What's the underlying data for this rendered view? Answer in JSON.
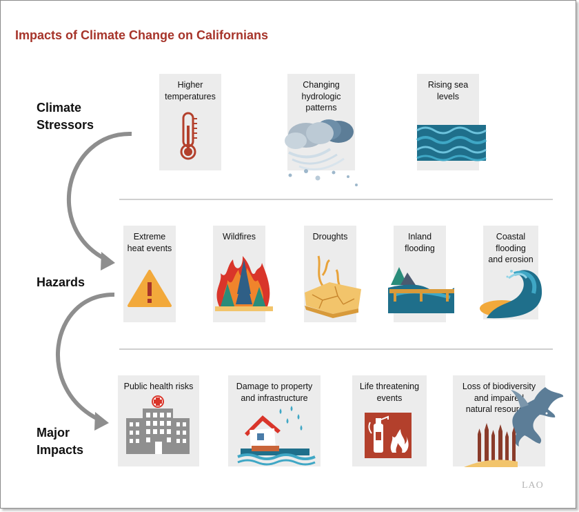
{
  "title": "Impacts of Climate Change on Californians",
  "rows": {
    "stressors": {
      "label": "Climate\nStressors"
    },
    "hazards": {
      "label": "Hazards"
    },
    "impacts": {
      "label": "Major\nImpacts"
    }
  },
  "stressors": [
    {
      "label": "Higher\ntemperatures",
      "icon": "thermometer-icon"
    },
    {
      "label": "Changing\nhydrologic\npatterns",
      "icon": "storm-cloud-icon"
    },
    {
      "label": "Rising sea\nlevels",
      "icon": "waves-icon"
    }
  ],
  "hazards": [
    {
      "label": "Extreme\nheat events",
      "icon": "warning-icon"
    },
    {
      "label": "Wildfires",
      "icon": "wildfire-icon"
    },
    {
      "label": "Droughts",
      "icon": "cracked-earth-icon"
    },
    {
      "label": "Inland\nflooding",
      "icon": "river-flood-icon"
    },
    {
      "label": "Coastal\nflooding\nand erosion",
      "icon": "big-wave-icon"
    }
  ],
  "impacts": [
    {
      "label": "Public health risks",
      "icon": "hospital-icon"
    },
    {
      "label": "Damage to property\nand infrastructure",
      "icon": "flooded-house-icon"
    },
    {
      "label": "Life threatening\nevents",
      "icon": "fire-extinguisher-icon"
    },
    {
      "label": "Loss of biodiversity\nand impaired\nnatural resources",
      "icon": "eagle-stumps-icon"
    }
  ],
  "logo": "LAO",
  "colors": {
    "title": "#a6342a",
    "card": "#ececec",
    "arrow": "#8e8e8e",
    "thermometer": "#b3402c",
    "water_dark": "#1f6f8b",
    "water_light": "#3fa7c5",
    "warning": "#f2a93b",
    "fire_red": "#d9352a",
    "fire_orange": "#f0842c",
    "tree_green": "#2a8c7a",
    "sand": "#f2c46b",
    "building": "#8f8f8f"
  }
}
